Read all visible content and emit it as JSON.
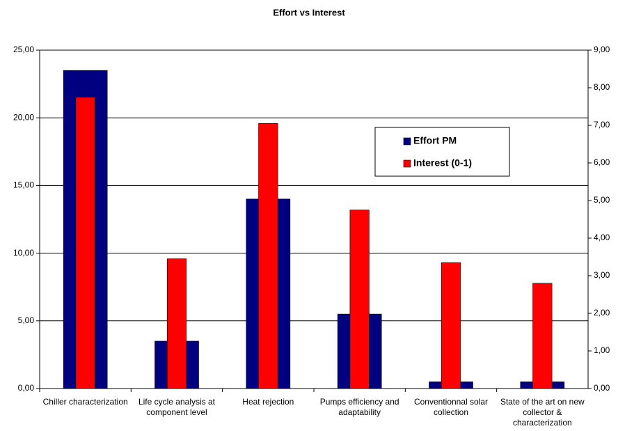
{
  "chart_data": {
    "type": "bar",
    "title": "Effort vs Interest",
    "categories": [
      "Chiller characterization",
      "Life cycle analysis at component level",
      "Heat rejection",
      "Pumps efficiency and adaptability",
      "Conventionnal solar collection",
      "State of the art on new collector & characterization"
    ],
    "series": [
      {
        "name": "Effort PM",
        "color": "#000080",
        "values": [
          23.5,
          3.5,
          14,
          5.5,
          0.5,
          0.5
        ]
      },
      {
        "name": "Interest (0-1)",
        "color": "#ff0000",
        "axis": "y2",
        "values": [
          7.75,
          3.45,
          7.05,
          4.75,
          3.35,
          2.8
        ]
      }
    ],
    "ylim": [
      0,
      25
    ],
    "yticks": [
      {
        "value": 0,
        "label": "0,00"
      },
      {
        "value": 5,
        "label": "5,00"
      },
      {
        "value": 10,
        "label": "10,00"
      },
      {
        "value": 15,
        "label": "15,00"
      },
      {
        "value": 20,
        "label": "20,00"
      },
      {
        "value": 25,
        "label": "25,00"
      }
    ],
    "y2lim": [
      0,
      9
    ],
    "y2ticks": [
      {
        "value": 0,
        "label": "0,00"
      },
      {
        "value": 1,
        "label": "1,00"
      },
      {
        "value": 2,
        "label": "2,00"
      },
      {
        "value": 3,
        "label": "3,00"
      },
      {
        "value": 4,
        "label": "4,00"
      },
      {
        "value": 5,
        "label": "5,00"
      },
      {
        "value": 6,
        "label": "6,00"
      },
      {
        "value": 7,
        "label": "7,00"
      },
      {
        "value": 8,
        "label": "8,00"
      },
      {
        "value": 9,
        "label": "9,00"
      }
    ],
    "grid": true
  }
}
